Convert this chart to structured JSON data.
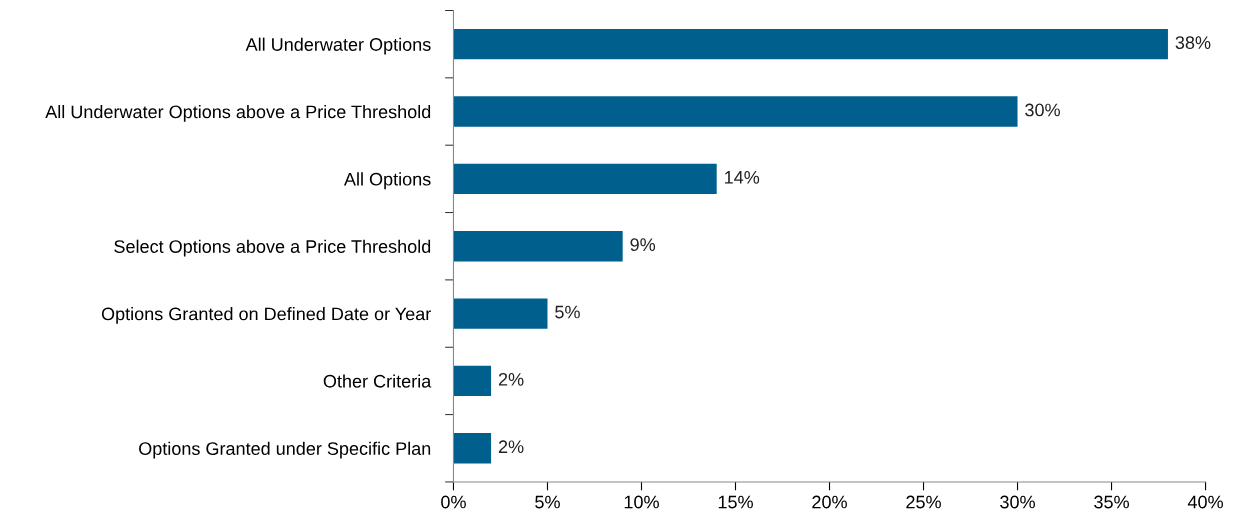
{
  "chart_data": {
    "type": "bar",
    "orientation": "horizontal",
    "categories": [
      "All Underwater Options",
      "All Underwater Options above a Price Threshold",
      "All Options",
      "Select Options above a Price Threshold",
      "Options Granted on Defined Date or Year",
      "Other Criteria",
      "Options Granted under Specific Plan"
    ],
    "values": [
      38,
      30,
      14,
      9,
      5,
      2,
      2
    ],
    "value_labels": [
      "38%",
      "30%",
      "14%",
      "9%",
      "5%",
      "2%",
      "2%"
    ],
    "color": "#005f8c",
    "xlim": [
      0,
      40
    ],
    "xticks": [
      {
        "value": 0,
        "label": "0%"
      },
      {
        "value": 5,
        "label": "5%"
      },
      {
        "value": 10,
        "label": "10%"
      },
      {
        "value": 15,
        "label": "15%"
      },
      {
        "value": 20,
        "label": "20%"
      },
      {
        "value": 25,
        "label": "25%"
      },
      {
        "value": 30,
        "label": "30%"
      },
      {
        "value": 35,
        "label": "35%"
      },
      {
        "value": 40,
        "label": "40%"
      }
    ],
    "grid": false
  }
}
